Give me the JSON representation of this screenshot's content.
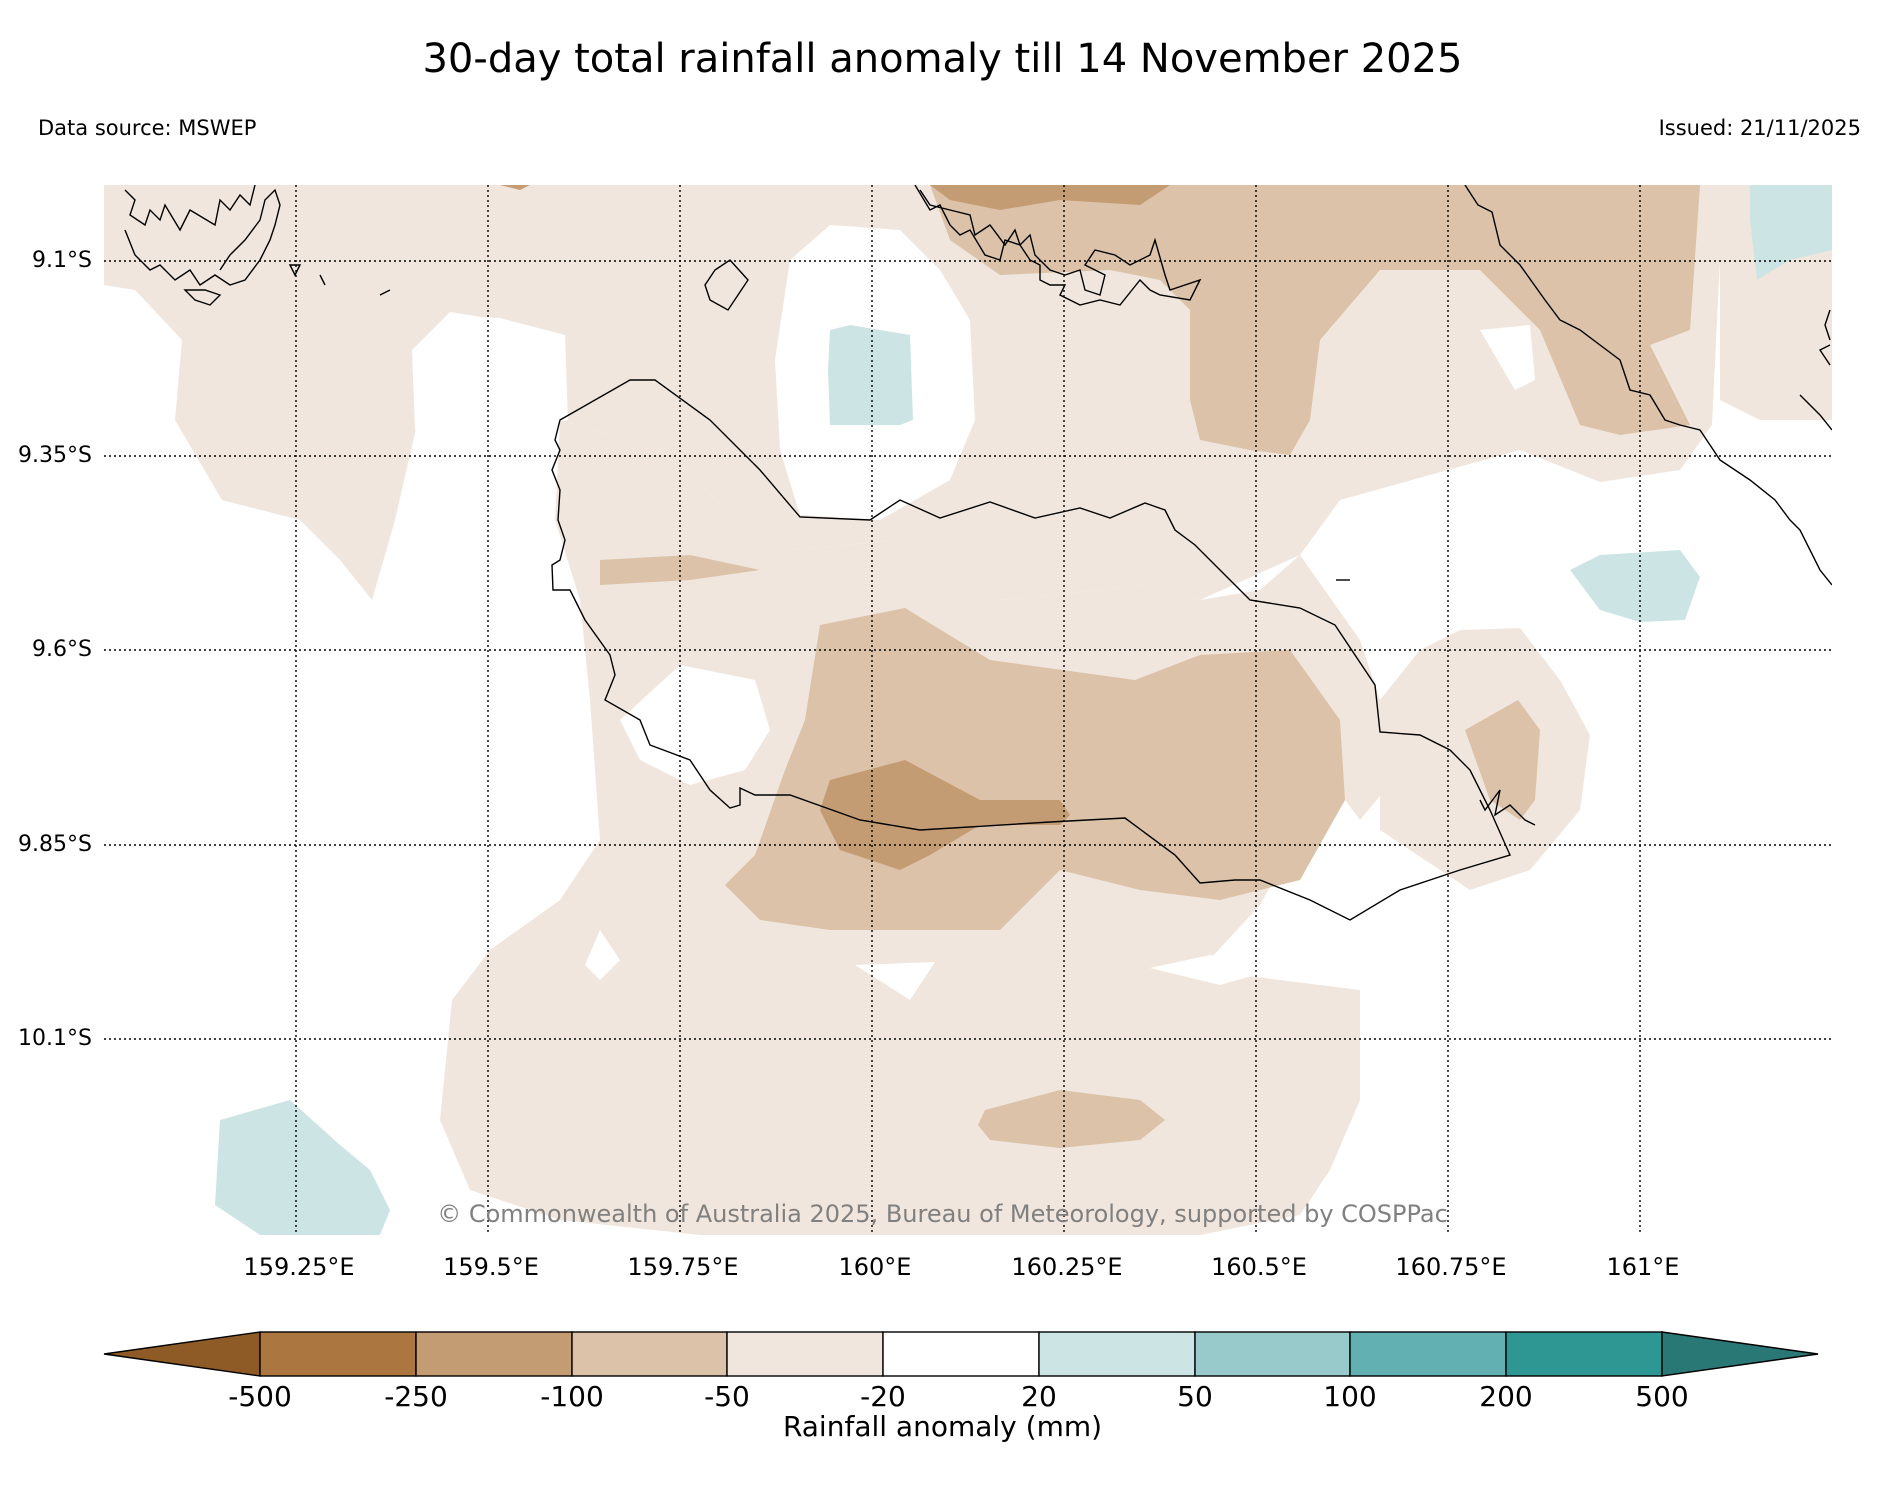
{
  "title": "30-day total rainfall anomaly till 14 November 2025",
  "data_source": "Data source: MSWEP",
  "issued": "Issued: 21/11/2025",
  "copyright": "© Commonwealth of Australia 2025, Bureau of Meteorology, supported by COSPPac",
  "lat_labels": [
    "9.1°S",
    "9.35°S",
    "9.6°S",
    "9.85°S",
    "10.1°S"
  ],
  "lon_labels": [
    "159.25°E",
    "159.5°E",
    "159.75°E",
    "160°E",
    "160.25°E",
    "160.5°E",
    "160.75°E",
    "161°E"
  ],
  "colorbar": {
    "title": "Rainfall anomaly (mm)",
    "ticks": [
      "-500",
      "-250",
      "-100",
      "-50",
      "-20",
      "20",
      "50",
      "100",
      "200",
      "500"
    ],
    "colors": [
      "#8e5a26",
      "#ab7640",
      "#c49c73",
      "#dbc2a8",
      "#f0e6dd",
      "#ffffff",
      "#cce5e4",
      "#98cacb",
      "#62b0b1",
      "#2e9794",
      "#2a7876"
    ]
  },
  "legend_bins": [
    "< -500",
    "-500 to -250",
    "-250 to -100",
    "-100 to -50",
    "-50 to -20",
    "-20 to 20",
    "20 to 50",
    "50 to 100",
    "100 to 200",
    "200 to 500",
    "> 500"
  ]
}
